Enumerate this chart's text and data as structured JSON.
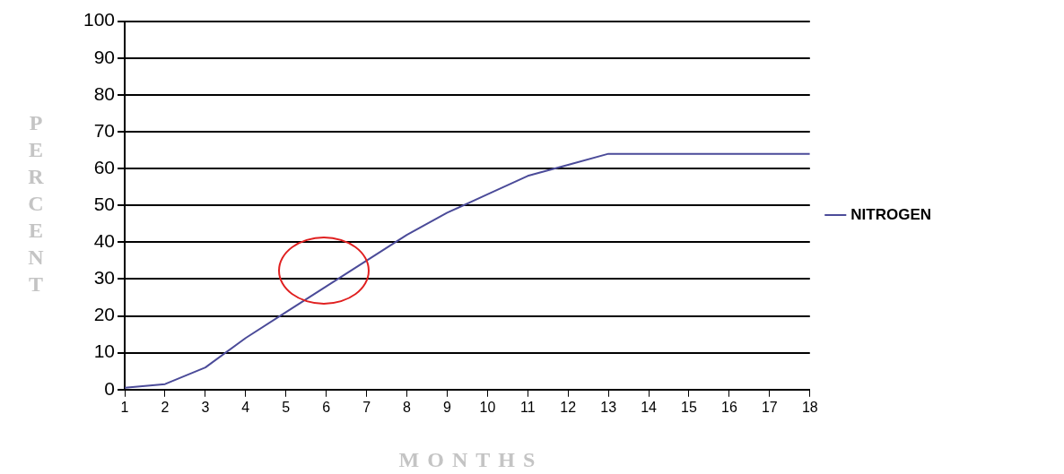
{
  "chart_data": {
    "type": "line",
    "xlabel": "MONTHS",
    "ylabel": "PERCENT",
    "x": [
      1,
      2,
      3,
      4,
      5,
      6,
      7,
      8,
      9,
      10,
      11,
      12,
      13,
      14,
      15,
      16,
      17,
      18
    ],
    "series": [
      {
        "name": "NITROGEN",
        "color": "#4b4b99",
        "values": [
          0.5,
          1.5,
          6,
          14,
          21,
          28,
          35,
          42,
          48,
          53,
          58,
          61,
          64,
          64,
          64,
          64,
          64,
          64
        ]
      }
    ],
    "xlim": [
      1,
      18
    ],
    "xticks": [
      1,
      2,
      3,
      4,
      5,
      6,
      7,
      8,
      9,
      10,
      11,
      12,
      13,
      14,
      15,
      16,
      17,
      18
    ],
    "ylim": [
      0,
      100
    ],
    "yticks": [
      0,
      10,
      20,
      30,
      40,
      50,
      60,
      70,
      80,
      90,
      100
    ],
    "grid": "y",
    "legend": "right",
    "marker": "none",
    "line_style": "solid"
  }
}
